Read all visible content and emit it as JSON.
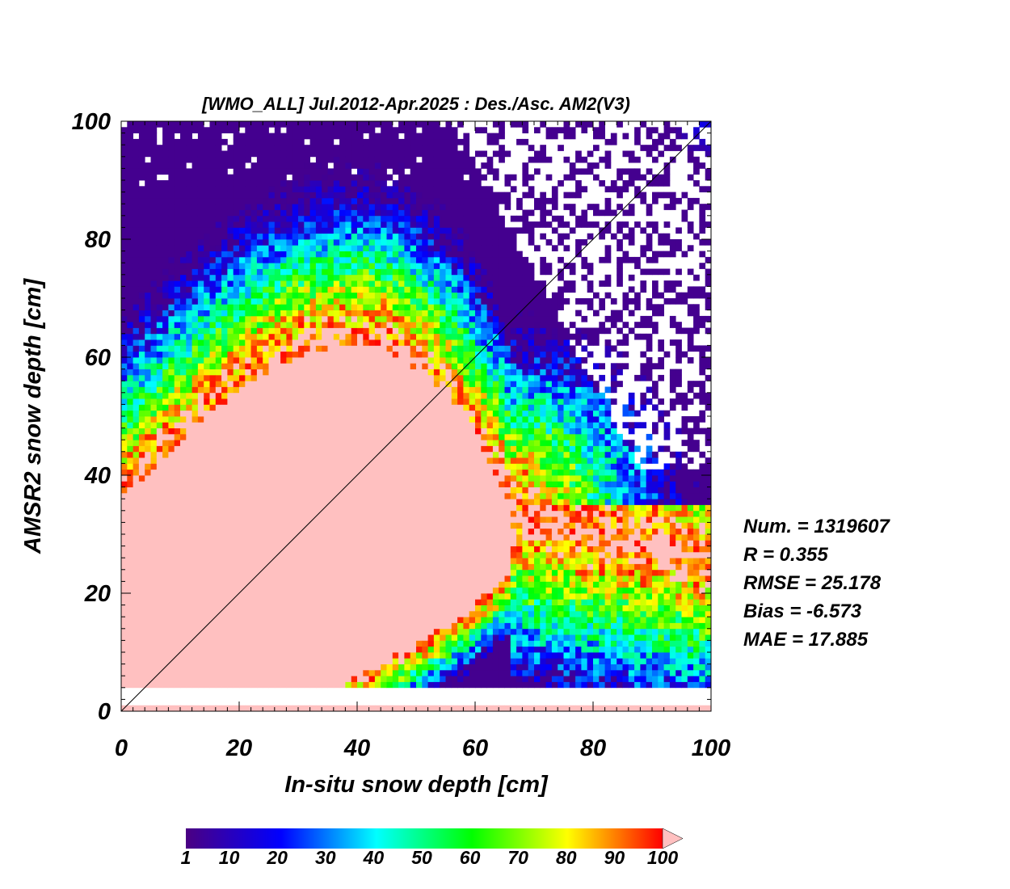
{
  "chart_data": {
    "type": "heatmap",
    "title": "[WMO_ALL] Jul.2012-Apr.2025 : Des./Asc. AM2(V3)",
    "xlabel": "In-situ snow depth [cm]",
    "ylabel": "AMSR2 snow depth [cm]",
    "xlim": [
      0,
      100
    ],
    "ylim": [
      0,
      100
    ],
    "x_ticks": [
      "0",
      "20",
      "40",
      "60",
      "80",
      "100"
    ],
    "y_ticks": [
      "0",
      "20",
      "40",
      "60",
      "80",
      "100"
    ],
    "one_to_one_line": true,
    "stats": {
      "num": "Num. = 1319607",
      "r": "R = 0.355",
      "rmse": "RMSE = 25.178",
      "bias": "Bias = -6.573",
      "mae": "MAE = 17.885"
    },
    "colorbar": {
      "ticks": [
        "1",
        "10",
        "20",
        "30",
        "40",
        "50",
        "60",
        "70",
        "80",
        "90",
        "100"
      ],
      "range": [
        1,
        100
      ],
      "overflow_color": "#ffc0c0",
      "colors": [
        "#4b0082",
        "#0000ff",
        "#00ffff",
        "#00ff00",
        "#ffff00",
        "#ff0000"
      ]
    },
    "density_regions": [
      {
        "name": "count > 100 (saturated)",
        "color": "#ffc0c0",
        "x_range": [
          1,
          66
        ],
        "y_range": [
          4,
          64
        ],
        "description": "dense core below arc from y~35 at x=1 to peak ~62 at x~40 down to x~66"
      },
      {
        "name": "count > 100 (lower band)",
        "color": "#ffc0c0",
        "x_range": [
          0,
          100
        ],
        "y_range": [
          0,
          1
        ]
      },
      {
        "name": "sparse counts 1-10",
        "color": "#4b0082",
        "x_range": [
          0,
          100
        ],
        "y_range": [
          4,
          100
        ]
      }
    ]
  }
}
